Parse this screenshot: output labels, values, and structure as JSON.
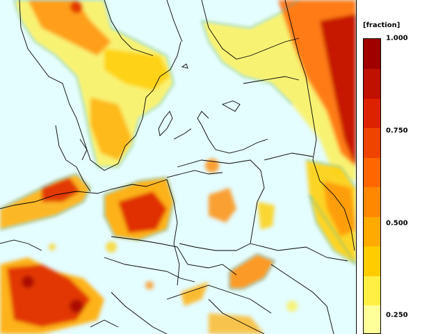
{
  "legend": {
    "unit": "[fraction]",
    "ticks": [
      {
        "value": 1.0,
        "label": "1.000"
      },
      {
        "value": 0.75,
        "label": "0.750"
      },
      {
        "value": 0.5,
        "label": "0.500"
      },
      {
        "value": 0.25,
        "label": "0.250"
      }
    ],
    "range": [
      0.2,
      1.0
    ],
    "colors": [
      "#ffff99",
      "#ffee44",
      "#ffcc00",
      "#ffaa00",
      "#ff8800",
      "#ff6600",
      "#ee4400",
      "#dd2200",
      "#c01000",
      "#a00000"
    ]
  },
  "map": {
    "background_color": "#e4fdff",
    "border_color": "#000000",
    "contour_color": "#2fb6d6"
  }
}
